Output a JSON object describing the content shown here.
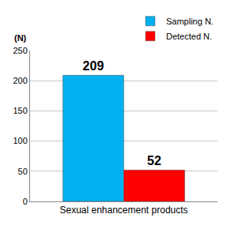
{
  "chart_data": {
    "type": "bar",
    "ylabel": "(N)",
    "categories": [
      "Sexual enhancement products"
    ],
    "series": [
      {
        "name": "Sampling N.",
        "color": "#00b0f0",
        "values": [
          209
        ]
      },
      {
        "name": "Detected N.",
        "color": "#ff0000",
        "values": [
          52
        ]
      }
    ],
    "ylim": [
      0,
      250
    ],
    "yticks": [
      0,
      50,
      100,
      150,
      200,
      250
    ],
    "grid": true,
    "legend": "top-right",
    "data_labels": true
  }
}
